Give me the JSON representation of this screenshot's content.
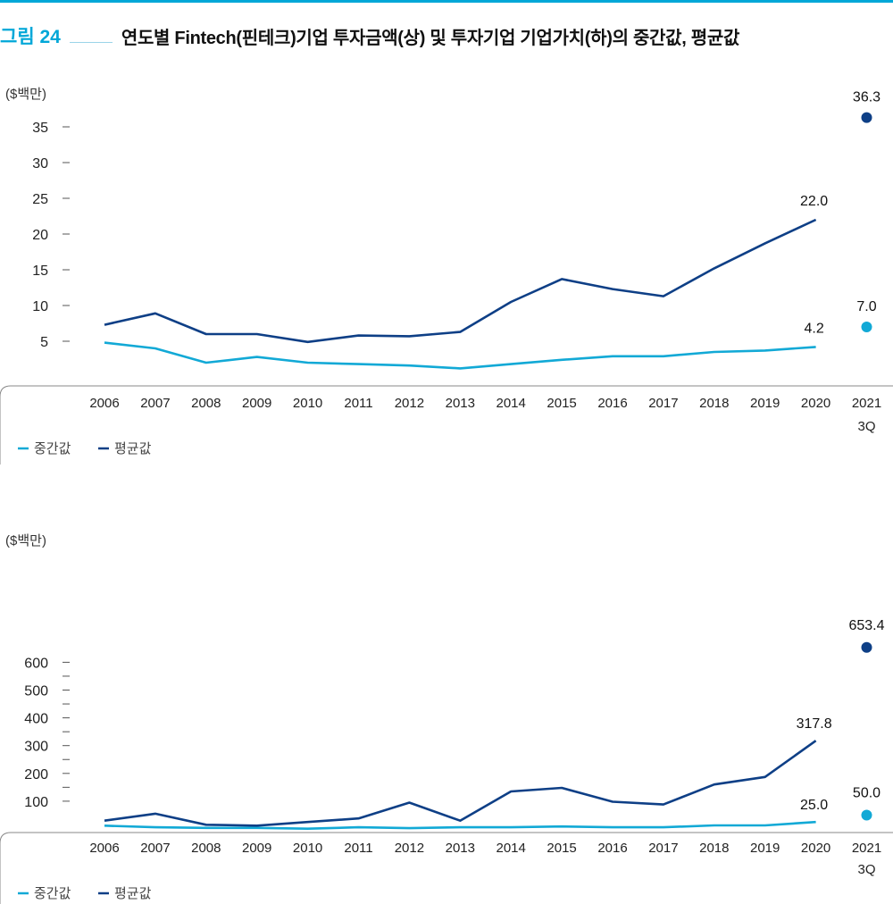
{
  "figure": {
    "label": "그림 24",
    "title": "연도별 Fintech(핀테크)기업 투자금액(상) 및 투자기업 기업가치(하)의 중간값, 평균값"
  },
  "colors": {
    "median": "#12a9d6",
    "mean": "#0e3f86",
    "accent": "#00a7d8"
  },
  "chart_data": [
    {
      "type": "line",
      "unit": "($백만)",
      "categories": [
        "2006",
        "2007",
        "2008",
        "2009",
        "2010",
        "2011",
        "2012",
        "2013",
        "2014",
        "2015",
        "2016",
        "2017",
        "2018",
        "2019",
        "2020",
        "2021\n3Q"
      ],
      "series": [
        {
          "name": "중간값",
          "values": [
            4.8,
            4.0,
            2.0,
            2.8,
            2.0,
            1.8,
            1.6,
            1.2,
            1.8,
            2.4,
            2.9,
            2.9,
            3.5,
            3.7,
            4.2,
            7.0
          ]
        },
        {
          "name": "평균값",
          "values": [
            7.3,
            8.9,
            6.0,
            6.0,
            4.9,
            5.8,
            5.7,
            6.3,
            10.5,
            13.7,
            12.3,
            11.3,
            15.2,
            18.7,
            22.0,
            36.3
          ]
        }
      ],
      "yticks": [
        5,
        10,
        15,
        20,
        25,
        30,
        35
      ],
      "ylim": [
        0,
        37.5
      ],
      "labels": [
        {
          "series": 0,
          "index": 14,
          "text": "4.2"
        },
        {
          "series": 1,
          "index": 14,
          "text": "22.0"
        },
        {
          "series": 0,
          "index": 15,
          "text": "7.0"
        },
        {
          "series": 1,
          "index": 15,
          "text": "36.3"
        }
      ],
      "legend": [
        "중간값",
        "평균값"
      ]
    },
    {
      "type": "line",
      "unit": "($백만)",
      "categories": [
        "2006",
        "2007",
        "2008",
        "2009",
        "2010",
        "2011",
        "2012",
        "2013",
        "2014",
        "2015",
        "2016",
        "2017",
        "2018",
        "2019",
        "2020",
        "2021\n3Q"
      ],
      "series": [
        {
          "name": "중간값",
          "values": [
            12,
            6,
            4,
            4,
            1,
            6,
            3,
            6,
            6,
            9,
            6,
            6,
            13,
            13,
            25.0,
            50.0
          ]
        },
        {
          "name": "평균값",
          "values": [
            30,
            55,
            15,
            12,
            25,
            38,
            95,
            30,
            135,
            148,
            98,
            88,
            160,
            187,
            317.8,
            653.4
          ]
        }
      ],
      "yticks": [
        100,
        200,
        300,
        400,
        500,
        600
      ],
      "minor_ticks": [
        150,
        250,
        350,
        450,
        550
      ],
      "ylim": [
        0,
        680
      ],
      "labels": [
        {
          "series": 0,
          "index": 14,
          "text": "25.0"
        },
        {
          "series": 1,
          "index": 14,
          "text": "317.8"
        },
        {
          "series": 0,
          "index": 15,
          "text": "50.0"
        },
        {
          "series": 1,
          "index": 15,
          "text": "653.4"
        }
      ],
      "legend": [
        "중간값",
        "평균값"
      ]
    }
  ]
}
